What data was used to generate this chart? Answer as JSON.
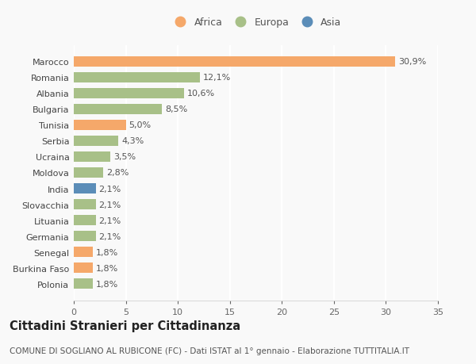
{
  "countries": [
    "Marocco",
    "Romania",
    "Albania",
    "Bulgaria",
    "Tunisia",
    "Serbia",
    "Ucraina",
    "Moldova",
    "India",
    "Slovacchia",
    "Lituania",
    "Germania",
    "Senegal",
    "Burkina Faso",
    "Polonia"
  ],
  "values": [
    30.9,
    12.1,
    10.6,
    8.5,
    5.0,
    4.3,
    3.5,
    2.8,
    2.1,
    2.1,
    2.1,
    2.1,
    1.8,
    1.8,
    1.8
  ],
  "labels": [
    "30,9%",
    "12,1%",
    "10,6%",
    "8,5%",
    "5,0%",
    "4,3%",
    "3,5%",
    "2,8%",
    "2,1%",
    "2,1%",
    "2,1%",
    "2,1%",
    "1,8%",
    "1,8%",
    "1,8%"
  ],
  "continents": [
    "Africa",
    "Europa",
    "Europa",
    "Europa",
    "Africa",
    "Europa",
    "Europa",
    "Europa",
    "Asia",
    "Europa",
    "Europa",
    "Europa",
    "Africa",
    "Africa",
    "Europa"
  ],
  "colors": {
    "Africa": "#F5A86A",
    "Europa": "#A8C088",
    "Asia": "#5B8DB8"
  },
  "title": "Cittadini Stranieri per Cittadinanza",
  "subtitle": "COMUNE DI SOGLIANO AL RUBICONE (FC) - Dati ISTAT al 1° gennaio - Elaborazione TUTTITALIA.IT",
  "xlim": [
    0,
    35
  ],
  "xticks": [
    0,
    5,
    10,
    15,
    20,
    25,
    30,
    35
  ],
  "background_color": "#f9f9f9",
  "plot_bg_color": "#f9f9f9",
  "grid_color": "#ffffff",
  "bar_height": 0.62,
  "title_fontsize": 10.5,
  "subtitle_fontsize": 7.5,
  "label_fontsize": 8,
  "tick_fontsize": 8,
  "legend_fontsize": 9
}
